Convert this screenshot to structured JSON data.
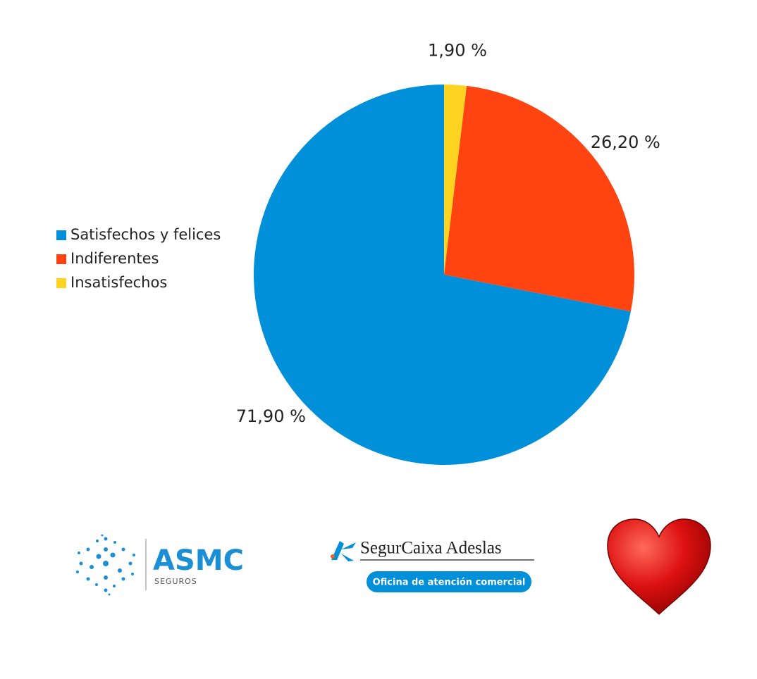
{
  "chart_data": {
    "type": "pie",
    "series": [
      {
        "name": "Satisfechos y felices",
        "color": "#0090da",
        "values": [
          71.9
        ],
        "value_labels": [
          "71,90 %"
        ]
      },
      {
        "name": "Indiferentes",
        "color": "#ff4411",
        "values": [
          26.2
        ],
        "value_labels": [
          "26,20 %"
        ]
      },
      {
        "name": "Insatisfechos",
        "color": "#ffd321",
        "values": [
          1.9
        ],
        "value_labels": [
          "1,90 %"
        ]
      }
    ],
    "legend": "left"
  },
  "footer": {
    "asmc": "ASMC",
    "asmc_sub": "SEGUROS",
    "segurcaixa": "SegurCaixa Adeslas",
    "segurcaixa_button": "Oficina de atención comercial"
  }
}
